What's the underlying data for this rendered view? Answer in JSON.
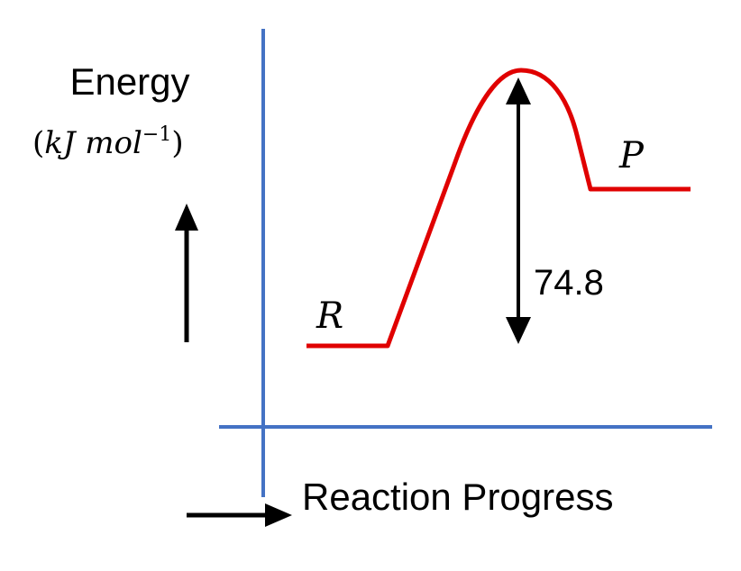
{
  "labels": {
    "energy": "Energy",
    "unit_open": "(",
    "unit_text": "kJ mol",
    "unit_exponent": "−1",
    "unit_close": ")",
    "reactant": "R",
    "product": "P",
    "activation_energy": "74.8",
    "x_axis": "Reaction Progress"
  },
  "colors": {
    "axes": "#4472C4",
    "curve": "#E00000",
    "arrows": "#000000"
  }
}
